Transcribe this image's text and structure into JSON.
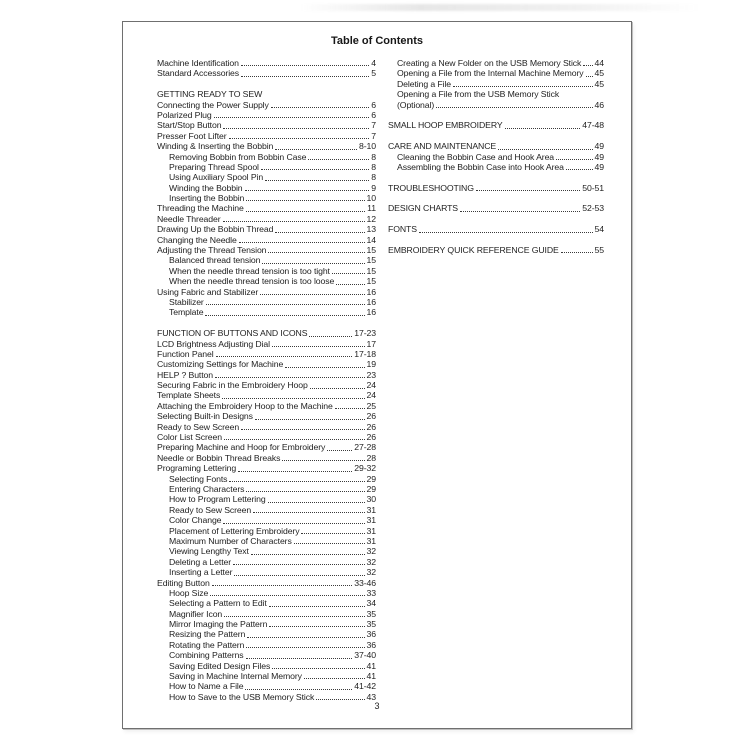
{
  "page": {
    "title": "Table of Contents",
    "page_number": "3",
    "colors": {
      "paper": "#ffffff",
      "ink": "#1f1f1f",
      "frame_border": "#6f6f6f"
    }
  },
  "toc": {
    "left_column": [
      {
        "t": "item",
        "label": "Machine Identification",
        "page": "4",
        "indent": 0
      },
      {
        "t": "item",
        "label": "Standard Accessories",
        "page": "5",
        "indent": 0
      },
      {
        "t": "spacer"
      },
      {
        "t": "heading",
        "label": "GETTING READY TO SEW",
        "indent": 0
      },
      {
        "t": "item",
        "label": "Connecting the Power Supply",
        "page": "6",
        "indent": 0
      },
      {
        "t": "item",
        "label": "Polarized Plug",
        "page": "6",
        "indent": 0
      },
      {
        "t": "item",
        "label": "Start/Stop Button",
        "page": "7",
        "indent": 0
      },
      {
        "t": "item",
        "label": "Presser Foot Lifter",
        "page": "7",
        "indent": 0
      },
      {
        "t": "item",
        "label": "Winding & Inserting the Bobbin",
        "page": "8-10",
        "indent": 0
      },
      {
        "t": "item",
        "label": "Removing Bobbin from Bobbin Case",
        "page": "8",
        "indent": 1
      },
      {
        "t": "item",
        "label": "Preparing Thread Spool",
        "page": "8",
        "indent": 1
      },
      {
        "t": "item",
        "label": "Using Auxiliary Spool Pin",
        "page": "8",
        "indent": 1
      },
      {
        "t": "item",
        "label": "Winding the Bobbin",
        "page": "9",
        "indent": 1
      },
      {
        "t": "item",
        "label": "Inserting the Bobbin",
        "page": "10",
        "indent": 1
      },
      {
        "t": "item",
        "label": "Threading the Machine",
        "page": "11",
        "indent": 0
      },
      {
        "t": "item",
        "label": "Needle Threader",
        "page": "12",
        "indent": 0
      },
      {
        "t": "item",
        "label": "Drawing Up the Bobbin Thread",
        "page": "13",
        "indent": 0
      },
      {
        "t": "item",
        "label": "Changing the Needle",
        "page": "14",
        "indent": 0
      },
      {
        "t": "item",
        "label": "Adjusting the Thread Tension",
        "page": "15",
        "indent": 0
      },
      {
        "t": "item",
        "label": "Balanced thread tension",
        "page": "15",
        "indent": 1
      },
      {
        "t": "item",
        "label": "When the needle thread tension is too tight",
        "page": "15",
        "indent": 1
      },
      {
        "t": "item",
        "label": "When the needle thread tension is too loose",
        "page": "15",
        "indent": 1
      },
      {
        "t": "item",
        "label": "Using Fabric and Stabilizer",
        "page": "16",
        "indent": 0
      },
      {
        "t": "item",
        "label": "Stabilizer",
        "page": "16",
        "indent": 1
      },
      {
        "t": "item",
        "label": "Template",
        "page": "16",
        "indent": 1
      },
      {
        "t": "spacer"
      },
      {
        "t": "item",
        "label": "FUNCTION OF BUTTONS AND ICONS",
        "page": "17-23",
        "indent": 0
      },
      {
        "t": "item",
        "label": "LCD Brightness Adjusting Dial",
        "page": "17",
        "indent": 0
      },
      {
        "t": "item",
        "label": "Function Panel",
        "page": "17-18",
        "indent": 0
      },
      {
        "t": "item",
        "label": "Customizing Settings for Machine",
        "page": "19",
        "indent": 0
      },
      {
        "t": "item",
        "label": "HELP ? Button",
        "page": "23",
        "indent": 0
      },
      {
        "t": "item",
        "label": "Securing Fabric in the Embroidery Hoop",
        "page": "24",
        "indent": 0
      },
      {
        "t": "item",
        "label": "Template Sheets",
        "page": "24",
        "indent": 0
      },
      {
        "t": "item",
        "label": "Attaching the Embroidery Hoop to the Machine",
        "page": "25",
        "indent": 0
      },
      {
        "t": "item",
        "label": "Selecting Built-in Designs",
        "page": "26",
        "indent": 0
      },
      {
        "t": "item",
        "label": "Ready to Sew Screen",
        "page": "26",
        "indent": 0
      },
      {
        "t": "item",
        "label": "Color List Screen",
        "page": "26",
        "indent": 0
      },
      {
        "t": "item",
        "label": "Preparing Machine and Hoop for Embroidery",
        "page": "27-28",
        "indent": 0
      },
      {
        "t": "item",
        "label": "Needle or Bobbin Thread Breaks",
        "page": "28",
        "indent": 0
      },
      {
        "t": "item",
        "label": "Programing Lettering",
        "page": "29-32",
        "indent": 0
      },
      {
        "t": "item",
        "label": "Selecting Fonts",
        "page": "29",
        "indent": 1
      },
      {
        "t": "item",
        "label": "Entering Characters",
        "page": "29",
        "indent": 1
      },
      {
        "t": "item",
        "label": "How to Program Lettering",
        "page": "30",
        "indent": 1
      },
      {
        "t": "item",
        "label": "Ready to Sew Screen",
        "page": "31",
        "indent": 1
      },
      {
        "t": "item",
        "label": "Color Change",
        "page": "31",
        "indent": 1
      },
      {
        "t": "item",
        "label": "Placement of Lettering Embroidery",
        "page": "31",
        "indent": 1
      },
      {
        "t": "item",
        "label": "Maximum Number of Characters",
        "page": "31",
        "indent": 1
      },
      {
        "t": "item",
        "label": "Viewing Lengthy Text",
        "page": "32",
        "indent": 1
      },
      {
        "t": "item",
        "label": "Deleting a Letter",
        "page": "32",
        "indent": 1
      },
      {
        "t": "item",
        "label": "Inserting a Letter",
        "page": "32",
        "indent": 1
      },
      {
        "t": "item",
        "label": "Editing Button",
        "page": "33-46",
        "indent": 0
      },
      {
        "t": "item",
        "label": "Hoop Size",
        "page": "33",
        "indent": 1
      },
      {
        "t": "item",
        "label": "Selecting a Pattern to Edit",
        "page": "34",
        "indent": 1
      },
      {
        "t": "item",
        "label": "Magnifier Icon",
        "page": "35",
        "indent": 1
      },
      {
        "t": "item",
        "label": "Mirror Imaging the Pattern",
        "page": "35",
        "indent": 1
      },
      {
        "t": "item",
        "label": "Resizing the Pattern",
        "page": "36",
        "indent": 1
      },
      {
        "t": "item",
        "label": "Rotating the Pattern",
        "page": "36",
        "indent": 1
      },
      {
        "t": "item",
        "label": "Combining Patterns",
        "page": "37-40",
        "indent": 1
      },
      {
        "t": "item",
        "label": "Saving Edited Design Files",
        "page": "41",
        "indent": 1
      },
      {
        "t": "item",
        "label": "Saving in Machine Internal Memory",
        "page": "41",
        "indent": 1
      },
      {
        "t": "item",
        "label": "How to Name a File",
        "page": "41-42",
        "indent": 1
      },
      {
        "t": "item",
        "label": "How to Save to the USB Memory Stick",
        "page": "43",
        "indent": 1
      }
    ],
    "right_column": [
      {
        "t": "item",
        "label": "Creating a New Folder on the USB Memory Stick",
        "page": "44",
        "indent": 1
      },
      {
        "t": "item",
        "label": "Opening a File from the Internal Machine Memory",
        "page": "45",
        "indent": 1
      },
      {
        "t": "item",
        "label": "Deleting a File",
        "page": "45",
        "indent": 1
      },
      {
        "t": "wrap",
        "label": "Opening a File from the USB Memory Stick",
        "indent": 1
      },
      {
        "t": "item",
        "label": "(Optional)",
        "page": "46",
        "indent": 1
      },
      {
        "t": "spacer"
      },
      {
        "t": "item",
        "label": "SMALL HOOP EMBROIDERY",
        "page": "47-48",
        "indent": 0
      },
      {
        "t": "spacer"
      },
      {
        "t": "item",
        "label": "CARE AND MAINTENANCE",
        "page": "49",
        "indent": 0
      },
      {
        "t": "item",
        "label": "Cleaning the Bobbin Case and Hook Area",
        "page": "49",
        "indent": 1
      },
      {
        "t": "item",
        "label": "Assembling the Bobbin Case into Hook Area",
        "page": "49",
        "indent": 1
      },
      {
        "t": "spacer"
      },
      {
        "t": "item",
        "label": "TROUBLESHOOTING",
        "page": "50-51",
        "indent": 0
      },
      {
        "t": "spacer"
      },
      {
        "t": "item",
        "label": "DESIGN CHARTS",
        "page": "52-53",
        "indent": 0
      },
      {
        "t": "spacer"
      },
      {
        "t": "item",
        "label": "FONTS",
        "page": "54",
        "indent": 0
      },
      {
        "t": "spacer"
      },
      {
        "t": "item",
        "label": "EMBROIDERY QUICK REFERENCE GUIDE",
        "page": "55",
        "indent": 0
      }
    ]
  }
}
